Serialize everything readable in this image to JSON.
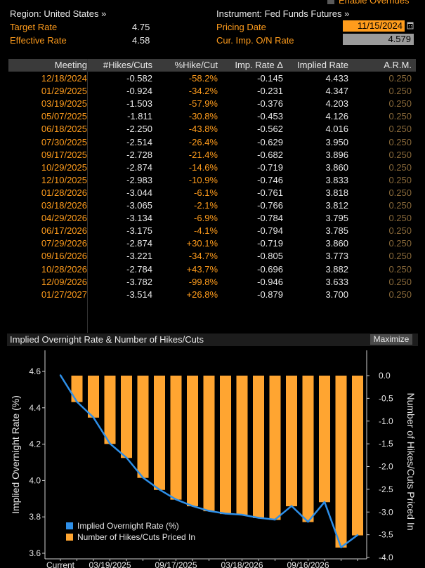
{
  "header": {
    "enable_overrides": "Enable Overrides",
    "region_label": "Region: United States »",
    "instrument_label": "Instrument: Fed Funds Futures »",
    "target_rate_label": "Target Rate",
    "target_rate_value": "4.75",
    "effective_rate_label": "Effective Rate",
    "effective_rate_value": "4.58",
    "pricing_date_label": "Pricing Date",
    "pricing_date_value": "11/15/2024",
    "cur_imp_label": "Cur. Imp. O/N Rate",
    "cur_imp_value": "4.579"
  },
  "table": {
    "columns": [
      "Meeting",
      "#Hikes/Cuts",
      "%Hike/Cut",
      "Imp. Rate Δ",
      "Implied Rate",
      "A.R.M."
    ],
    "rows": [
      [
        "12/18/2024",
        "-0.582",
        "-58.2%",
        "-0.145",
        "4.433",
        "0.250"
      ],
      [
        "01/29/2025",
        "-0.924",
        "-34.2%",
        "-0.231",
        "4.347",
        "0.250"
      ],
      [
        "03/19/2025",
        "-1.503",
        "-57.9%",
        "-0.376",
        "4.203",
        "0.250"
      ],
      [
        "05/07/2025",
        "-1.811",
        "-30.8%",
        "-0.453",
        "4.126",
        "0.250"
      ],
      [
        "06/18/2025",
        "-2.250",
        "-43.8%",
        "-0.562",
        "4.016",
        "0.250"
      ],
      [
        "07/30/2025",
        "-2.514",
        "-26.4%",
        "-0.629",
        "3.950",
        "0.250"
      ],
      [
        "09/17/2025",
        "-2.728",
        "-21.4%",
        "-0.682",
        "3.896",
        "0.250"
      ],
      [
        "10/29/2025",
        "-2.874",
        "-14.6%",
        "-0.719",
        "3.860",
        "0.250"
      ],
      [
        "12/10/2025",
        "-2.983",
        "-10.9%",
        "-0.746",
        "3.833",
        "0.250"
      ],
      [
        "01/28/2026",
        "-3.044",
        "-6.1%",
        "-0.761",
        "3.818",
        "0.250"
      ],
      [
        "03/18/2026",
        "-3.065",
        "-2.1%",
        "-0.766",
        "3.812",
        "0.250"
      ],
      [
        "04/29/2026",
        "-3.134",
        "-6.9%",
        "-0.784",
        "3.795",
        "0.250"
      ],
      [
        "06/17/2026",
        "-3.175",
        "-4.1%",
        "-0.794",
        "3.785",
        "0.250"
      ],
      [
        "07/29/2026",
        "-2.874",
        "+30.1%",
        "-0.719",
        "3.860",
        "0.250"
      ],
      [
        "09/16/2026",
        "-3.221",
        "-34.7%",
        "-0.805",
        "3.773",
        "0.250"
      ],
      [
        "10/28/2026",
        "-2.784",
        "+43.7%",
        "-0.696",
        "3.882",
        "0.250"
      ],
      [
        "12/09/2026",
        "-3.782",
        "-99.8%",
        "-0.946",
        "3.633",
        "0.250"
      ],
      [
        "01/27/2027",
        "-3.514",
        "+26.8%",
        "-0.879",
        "3.700",
        "0.250"
      ]
    ]
  },
  "chart": {
    "title": "Implied Overnight Rate & Number of Hikes/Cuts",
    "maximize_label": "Maximize",
    "left_axis_label": "Implied Overnight Rate (%)",
    "right_axis_label": "Number of Hikes/Cuts Priced In",
    "legend_line": "Implied Overnight Rate (%)",
    "legend_bar": "Number of Hikes/Cuts Priced In",
    "line_color": "#2e8fe8",
    "bar_color": "#ffa531"
  },
  "chart_data": {
    "type": "bar",
    "categories": [
      "Current",
      "12/18/2024",
      "01/29/2025",
      "03/19/2025",
      "05/07/2025",
      "06/18/2025",
      "07/30/2025",
      "09/17/2025",
      "10/29/2025",
      "12/10/2025",
      "01/28/2026",
      "03/18/2026",
      "04/29/2026",
      "06/17/2026",
      "07/29/2026",
      "09/16/2026",
      "10/28/2026",
      "12/09/2026",
      "01/27/2027"
    ],
    "x_tick_labels": [
      "Current",
      "03/19/2025",
      "09/17/2025",
      "03/18/2026",
      "09/16/2026"
    ],
    "series": [
      {
        "name": "Number of Hikes/Cuts Priced In",
        "axis": "right",
        "kind": "bar",
        "values": [
          null,
          -0.582,
          -0.924,
          -1.503,
          -1.811,
          -2.25,
          -2.514,
          -2.728,
          -2.874,
          -2.983,
          -3.044,
          -3.065,
          -3.134,
          -3.175,
          -2.874,
          -3.221,
          -2.784,
          -3.782,
          -3.514
        ]
      },
      {
        "name": "Implied Overnight Rate (%)",
        "axis": "left",
        "kind": "line",
        "values": [
          4.579,
          4.433,
          4.347,
          4.203,
          4.126,
          4.016,
          3.95,
          3.896,
          3.86,
          3.833,
          3.818,
          3.812,
          3.795,
          3.785,
          3.86,
          3.773,
          3.882,
          3.633,
          3.7
        ]
      }
    ],
    "ylim_left": [
      3.6,
      4.6
    ],
    "yticks_left": [
      "4.6",
      "4.4",
      "4.2",
      "4.0",
      "3.8",
      "3.6"
    ],
    "ylim_right": [
      -4.0,
      0.0
    ],
    "yticks_right": [
      "0.0",
      "-0.5",
      "-1.0",
      "-1.5",
      "-2.0",
      "-2.5",
      "-3.0",
      "-3.5",
      "-4.0"
    ],
    "legend": "bottom-left",
    "grid": false
  }
}
